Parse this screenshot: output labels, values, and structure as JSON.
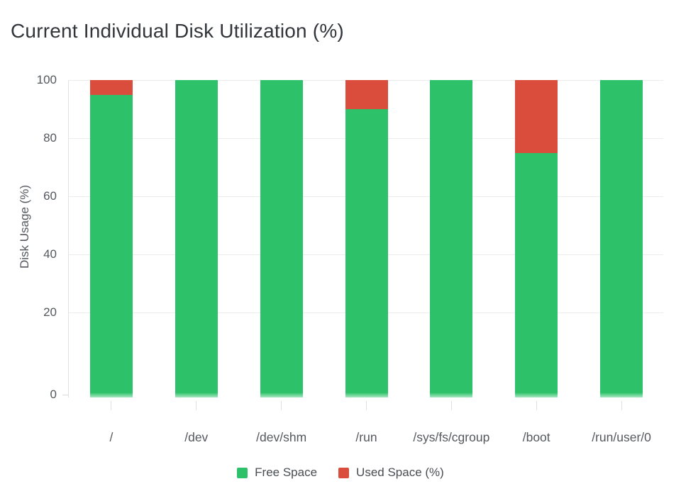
{
  "title": "Current Individual Disk Utilization (%)",
  "colors": {
    "free_space": "#2dc26a",
    "used_space": "#da4c3c",
    "axis_text": "#54585e",
    "title_text": "#32363b",
    "gridline": "#ececec"
  },
  "chart_data": {
    "type": "bar",
    "stacked": true,
    "title": "Current Individual Disk Utilization (%)",
    "xlabel": "",
    "ylabel": "Disk Usage (%)",
    "categories": [
      "/",
      "/dev",
      "/dev/shm",
      "/run",
      "/sys/fs/cgroup",
      "/boot",
      "/run/user/0"
    ],
    "series": [
      {
        "name": "Free Space",
        "color": "#2dc26a",
        "values": [
          95,
          100,
          100,
          90,
          100,
          75,
          100
        ]
      },
      {
        "name": "Used Space (%)",
        "color": "#da4c3c",
        "values": [
          5,
          0,
          0,
          10,
          0,
          25,
          0
        ]
      }
    ],
    "ylim": [
      0,
      100
    ],
    "yticks": [
      0,
      20,
      40,
      60,
      80,
      100
    ],
    "grid": true,
    "legend_position": "bottom"
  }
}
